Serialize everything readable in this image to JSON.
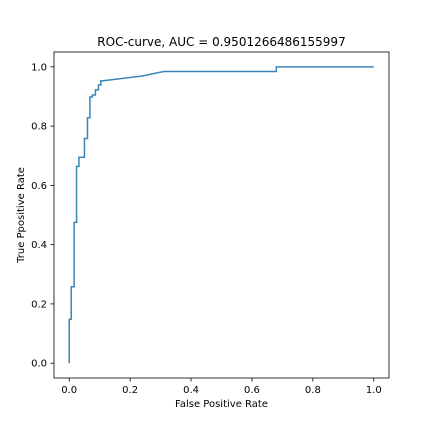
{
  "chart_data": {
    "type": "line",
    "title": "ROC-curve, AUC = 0.9501266486155997",
    "xlabel": "False Positive Rate",
    "ylabel": "True Ppositive Rate",
    "xlim": [
      -0.05,
      1.05
    ],
    "ylim": [
      -0.05,
      1.05
    ],
    "grid": false,
    "x_ticks": [
      {
        "value": 0.0,
        "label": "0.0"
      },
      {
        "value": 0.2,
        "label": "0.2"
      },
      {
        "value": 0.4,
        "label": "0.4"
      },
      {
        "value": 0.6,
        "label": "0.6"
      },
      {
        "value": 0.8,
        "label": "0.8"
      },
      {
        "value": 1.0,
        "label": "1.0"
      }
    ],
    "y_ticks": [
      {
        "value": 0.0,
        "label": "0.0"
      },
      {
        "value": 0.2,
        "label": "0.2"
      },
      {
        "value": 0.4,
        "label": "0.4"
      },
      {
        "value": 0.6,
        "label": "0.6"
      },
      {
        "value": 0.8,
        "label": "0.8"
      },
      {
        "value": 1.0,
        "label": "1.0"
      }
    ],
    "series": [
      {
        "color": "#3a86b8",
        "x": [
          0.0,
          0.0,
          0.0065,
          0.0065,
          0.016,
          0.016,
          0.024,
          0.024,
          0.032,
          0.032,
          0.05,
          0.05,
          0.06,
          0.06,
          0.068,
          0.068,
          0.076,
          0.076,
          0.086,
          0.086,
          0.096,
          0.096,
          0.104,
          0.104,
          0.112,
          0.112,
          0.176,
          0.176,
          0.24,
          0.24,
          0.31,
          0.31,
          0.68,
          0.68,
          1.0
        ],
        "y": [
          0.0,
          0.148,
          0.148,
          0.258,
          0.258,
          0.475,
          0.475,
          0.664,
          0.664,
          0.695,
          0.695,
          0.758,
          0.758,
          0.828,
          0.828,
          0.898,
          0.898,
          0.905,
          0.905,
          0.922,
          0.922,
          0.939,
          0.939,
          0.953,
          0.953,
          0.953,
          0.961,
          0.961,
          0.969,
          0.969,
          0.984,
          0.984,
          0.984,
          1.0,
          1.0
        ]
      }
    ]
  }
}
